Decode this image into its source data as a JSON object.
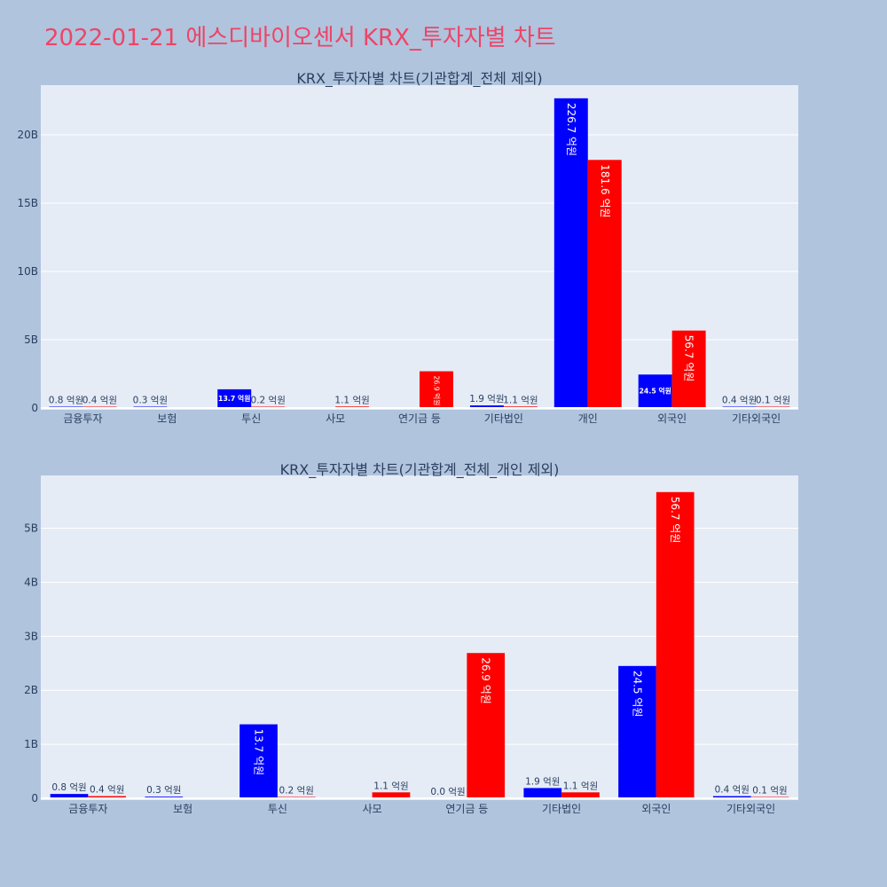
{
  "title": "2022-01-21 에스디바이오센서 KRX_투자자별 차트",
  "colors": {
    "buy": "#0000ff",
    "sell": "#ff0000",
    "plot_bg": "#e5ecf6",
    "page_bg": "#b0c4de",
    "title": "#ee4466"
  },
  "chart_data": [
    {
      "type": "bar",
      "title": "KRX_투자자별 차트(기관합계_전체 제외)",
      "categories": [
        "금융투자",
        "보험",
        "투신",
        "사모",
        "연기금 등",
        "기타법인",
        "개인",
        "외국인",
        "기타외국인"
      ],
      "series": [
        {
          "color": "#0000ff",
          "values": [
            0.08,
            0.03,
            1.37,
            0.0,
            0.0,
            0.19,
            22.67,
            2.45,
            0.04
          ],
          "labels": [
            "0.8 억원",
            "0.3 억원",
            "13.7 억원",
            "",
            "",
            "1.9 억원",
            "226.7 억원",
            "24.5 억원",
            "0.4 억원"
          ]
        },
        {
          "color": "#ff0000",
          "values": [
            0.04,
            0.0,
            0.02,
            0.11,
            2.69,
            0.11,
            18.16,
            5.67,
            0.01
          ],
          "labels": [
            "0.4 억원",
            "",
            "0.2 억원",
            "1.1 억원",
            "26.9 억원",
            "1.1 억원",
            "181.6 억원",
            "56.7 억원",
            "0.1 억원"
          ]
        }
      ],
      "yticks": [
        0,
        5,
        10,
        15,
        20
      ],
      "ytick_labels": [
        "0",
        "5B",
        "10B",
        "15B",
        "20B"
      ],
      "ylim": [
        0,
        23.6
      ]
    },
    {
      "type": "bar",
      "title": "KRX_투자자별 차트(기관합계_전체_개인 제외)",
      "categories": [
        "금융투자",
        "보험",
        "투신",
        "사모",
        "연기금 등",
        "기타법인",
        "외국인",
        "기타외국인"
      ],
      "series": [
        {
          "color": "#0000ff",
          "values": [
            0.08,
            0.03,
            1.37,
            0.0,
            0.0,
            0.19,
            2.45,
            0.04
          ],
          "labels": [
            "0.8 억원",
            "0.3 억원",
            "13.7 억원",
            "",
            "0.0 억원",
            "1.9 억원",
            "24.5 억원",
            "0.4 억원"
          ]
        },
        {
          "color": "#ff0000",
          "values": [
            0.04,
            0.0,
            0.02,
            0.11,
            2.69,
            0.11,
            5.67,
            0.01
          ],
          "labels": [
            "0.4 억원",
            "",
            "0.2 억원",
            "1.1 억원",
            "26.9 억원",
            "1.1 억원",
            "56.7 억원",
            "0.1 억원"
          ]
        }
      ],
      "yticks": [
        0,
        1,
        2,
        3,
        4,
        5
      ],
      "ytick_labels": [
        "0",
        "1B",
        "2B",
        "3B",
        "4B",
        "5B"
      ],
      "ylim": [
        0,
        5.97
      ]
    }
  ]
}
